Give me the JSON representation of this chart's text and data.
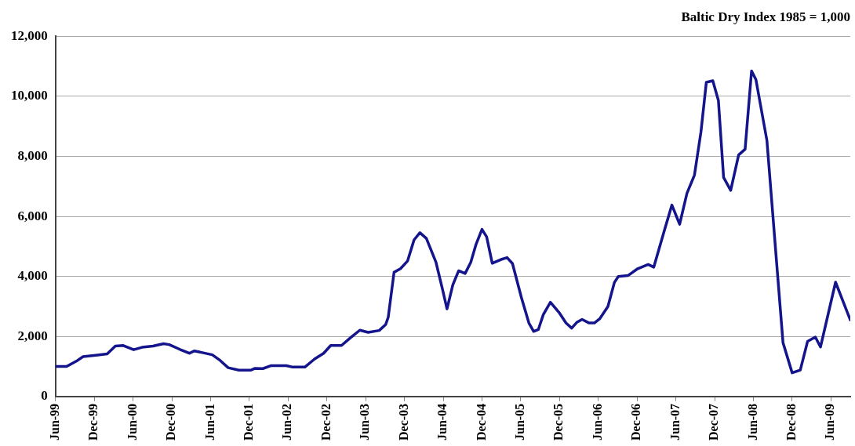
{
  "chart_data": {
    "type": "line",
    "title": "Baltic Dry Index 1985 = 1,000",
    "x": [
      "1999-06-01",
      "1999-07-23",
      "1999-09-13",
      "1999-10-09",
      "1999-12-16",
      "2000-02-01",
      "2000-03-09",
      "2000-04-16",
      "2000-06-04",
      "2000-07-13",
      "2000-09-04",
      "2000-10-23",
      "2000-11-19",
      "2001-01-09",
      "2001-02-23",
      "2001-03-16",
      "2001-04-19",
      "2001-06-09",
      "2001-07-16",
      "2001-08-23",
      "2001-10-13",
      "2001-12-09",
      "2001-12-28",
      "2002-02-04",
      "2002-03-13",
      "2002-05-23",
      "2002-06-23",
      "2002-08-19",
      "2002-10-04",
      "2002-11-16",
      "2002-12-19",
      "2003-02-09",
      "2003-03-23",
      "2003-05-04",
      "2003-06-13",
      "2003-08-04",
      "2003-09-04",
      "2003-09-16",
      "2003-10-13",
      "2003-11-13",
      "2003-12-16",
      "2004-01-16",
      "2004-02-13",
      "2004-03-13",
      "2004-04-28",
      "2004-05-28",
      "2004-06-19",
      "2004-07-16",
      "2004-08-13",
      "2004-09-13",
      "2004-10-09",
      "2004-11-04",
      "2004-12-01",
      "2004-12-23",
      "2005-01-19",
      "2005-02-28",
      "2005-03-28",
      "2005-04-23",
      "2005-06-04",
      "2005-07-09",
      "2005-08-01",
      "2005-08-23",
      "2005-09-16",
      "2005-10-19",
      "2005-12-01",
      "2006-01-01",
      "2006-01-28",
      "2006-02-23",
      "2006-03-16",
      "2006-04-19",
      "2006-05-13",
      "2006-06-09",
      "2006-07-16",
      "2006-08-16",
      "2006-09-04",
      "2006-10-19",
      "2006-12-04",
      "2007-01-23",
      "2007-02-19",
      "2007-04-09",
      "2007-05-13",
      "2007-06-19",
      "2007-07-23",
      "2007-08-28",
      "2007-09-28",
      "2007-10-23",
      "2007-11-23",
      "2007-12-19",
      "2008-01-13",
      "2008-02-16",
      "2008-03-23",
      "2008-04-23",
      "2008-05-23",
      "2008-06-13",
      "2008-08-04",
      "2008-09-23",
      "2008-10-19",
      "2008-12-01",
      "2009-01-09",
      "2009-02-13",
      "2009-03-19",
      "2009-04-13",
      "2009-06-23",
      "2009-09-01"
    ],
    "series": [
      {
        "color": "#14148c",
        "values": [
          1000,
          1000,
          1200,
          1330,
          1380,
          1420,
          1680,
          1700,
          1560,
          1640,
          1680,
          1760,
          1730,
          1570,
          1440,
          1520,
          1470,
          1390,
          1200,
          960,
          880,
          880,
          940,
          930,
          1030,
          1030,
          980,
          980,
          1250,
          1440,
          1700,
          1700,
          1970,
          2210,
          2140,
          2200,
          2400,
          2640,
          4140,
          4260,
          4520,
          5220,
          5460,
          5270,
          4470,
          3580,
          2920,
          3720,
          4190,
          4100,
          4470,
          5080,
          5570,
          5320,
          4440,
          4560,
          4630,
          4430,
          3300,
          2450,
          2170,
          2230,
          2730,
          3140,
          2780,
          2450,
          2280,
          2480,
          2570,
          2450,
          2450,
          2600,
          3000,
          3800,
          4000,
          4030,
          4260,
          4400,
          4310,
          5560,
          6380,
          5740,
          6770,
          7380,
          8810,
          10470,
          10520,
          9860,
          7300,
          6870,
          8050,
          8240,
          10850,
          10560,
          8530,
          4130,
          1790,
          790,
          880,
          1840,
          1980,
          1650,
          3810,
          2550
        ]
      }
    ],
    "xlim": [
      "1999-06-01",
      "2009-09-01"
    ],
    "xticks": [
      {
        "value": "1999-06-01",
        "label": "Jun-99"
      },
      {
        "value": "1999-12-01",
        "label": "Dec-99"
      },
      {
        "value": "2000-06-01",
        "label": "Jun-00"
      },
      {
        "value": "2000-12-01",
        "label": "Dec-00"
      },
      {
        "value": "2001-06-01",
        "label": "Jun-01"
      },
      {
        "value": "2001-12-01",
        "label": "Dec-01"
      },
      {
        "value": "2002-06-01",
        "label": "Jun-02"
      },
      {
        "value": "2002-12-01",
        "label": "Dec-02"
      },
      {
        "value": "2003-06-01",
        "label": "Jun-03"
      },
      {
        "value": "2003-12-01",
        "label": "Dec-03"
      },
      {
        "value": "2004-06-01",
        "label": "Jun-04"
      },
      {
        "value": "2004-12-01",
        "label": "Dec-04"
      },
      {
        "value": "2005-06-01",
        "label": "Jun-05"
      },
      {
        "value": "2005-12-01",
        "label": "Dec-05"
      },
      {
        "value": "2006-06-01",
        "label": "Jun-06"
      },
      {
        "value": "2006-12-01",
        "label": "Dec-06"
      },
      {
        "value": "2007-06-01",
        "label": "Jun-07"
      },
      {
        "value": "2007-12-01",
        "label": "Dec-07"
      },
      {
        "value": "2008-06-01",
        "label": "Jun-08"
      },
      {
        "value": "2008-12-01",
        "label": "Dec-08"
      },
      {
        "value": "2009-06-01",
        "label": "Jun-09"
      }
    ],
    "ylim": [
      0,
      12000
    ],
    "yticks": [
      {
        "value": 0,
        "label": "0"
      },
      {
        "value": 2000,
        "label": "2,000"
      },
      {
        "value": 4000,
        "label": "4,000"
      },
      {
        "value": 6000,
        "label": "6,000"
      },
      {
        "value": 8000,
        "label": "8,000"
      },
      {
        "value": 10000,
        "label": "10,000"
      },
      {
        "value": 12000,
        "label": "12,000"
      }
    ],
    "grid": "y",
    "legend": false,
    "marker": "none",
    "line_style": "solid"
  }
}
